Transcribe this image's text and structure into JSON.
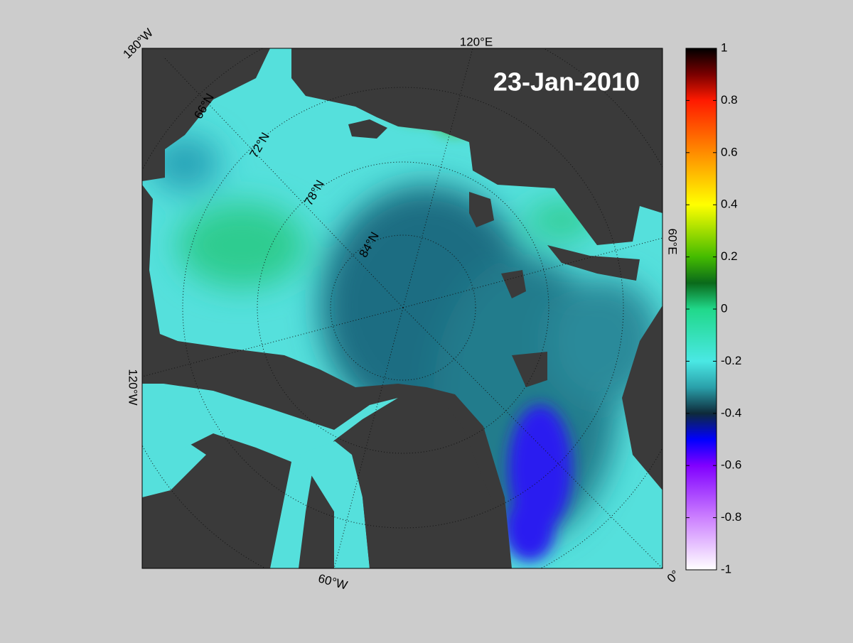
{
  "title": "23-Jan-2010",
  "longitude_labels": [
    "180°W",
    "120°E",
    "60°E",
    "0°",
    "60°W",
    "120°W"
  ],
  "latitude_labels": [
    "66°N",
    "72°N",
    "78°N",
    "84°N"
  ],
  "colorbar": {
    "lim": [
      -1,
      1
    ],
    "ticks": [
      1,
      0.8,
      0.6,
      0.4,
      0.2,
      0,
      -0.2,
      -0.4,
      -0.6,
      -0.8,
      -1
    ]
  }
}
